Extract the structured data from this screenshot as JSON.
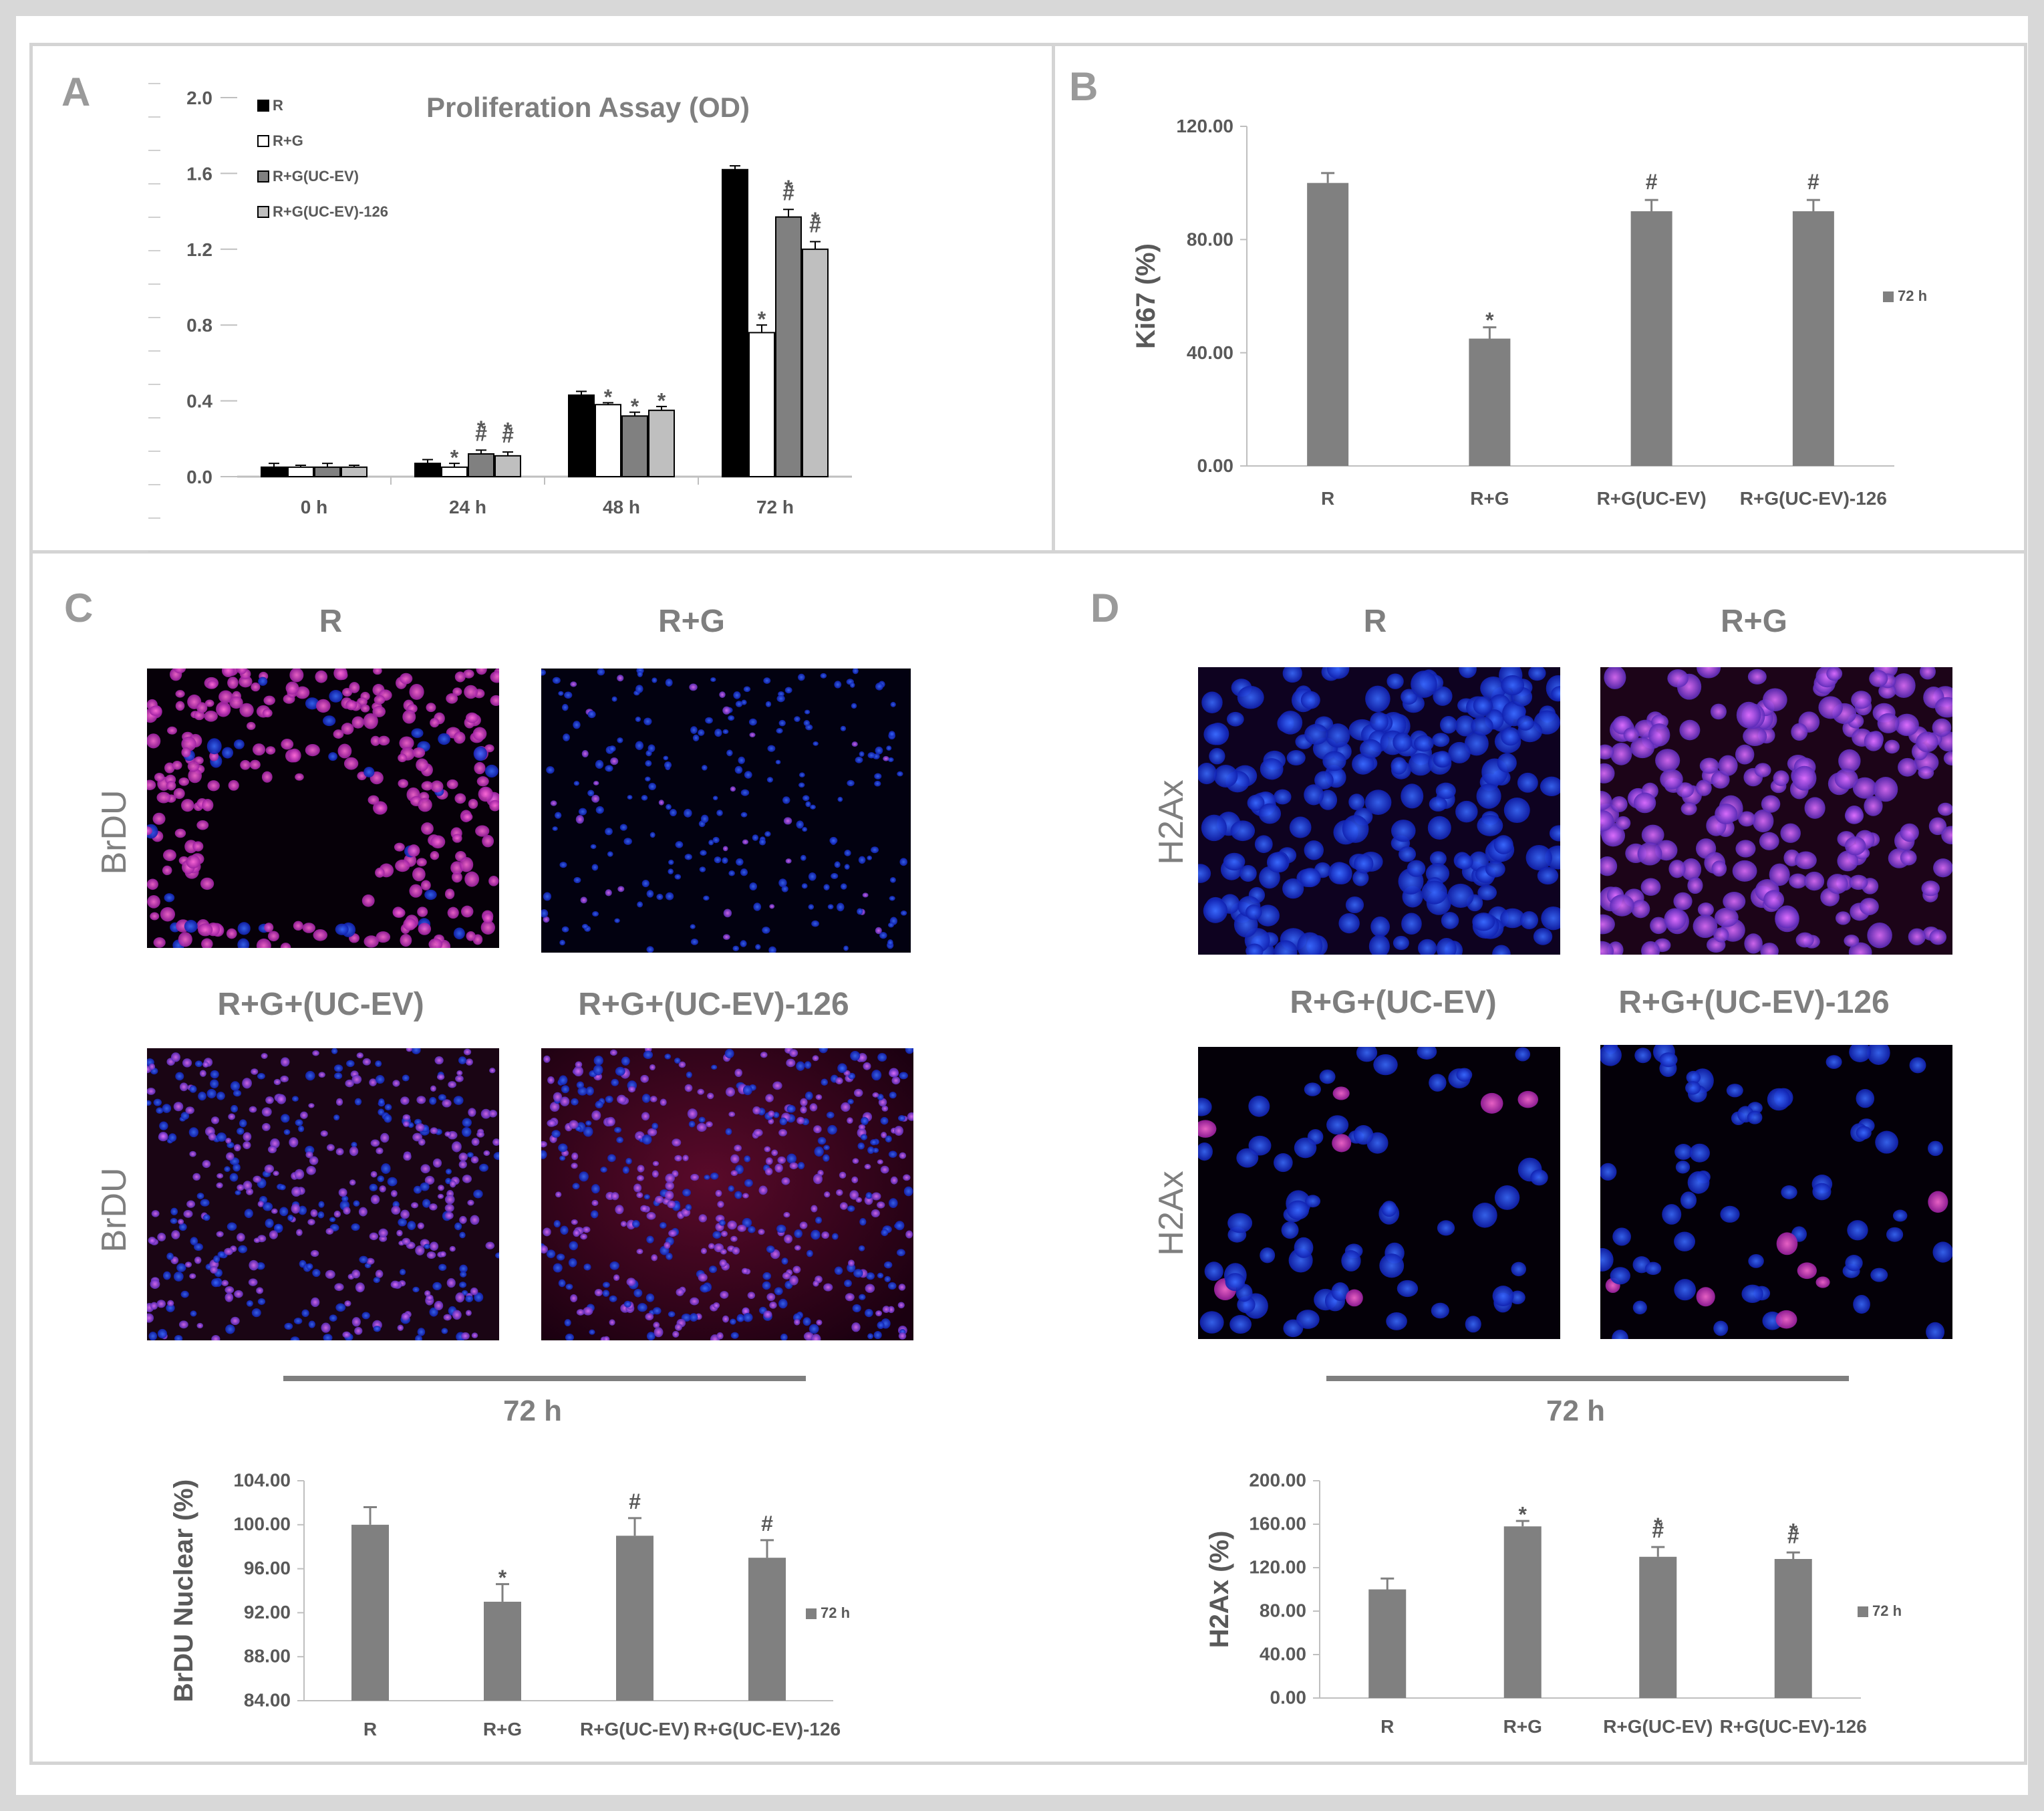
{
  "panels": {
    "A": "A",
    "B": "B",
    "C": "C",
    "D": "D"
  },
  "chart_data": [
    {
      "id": "A",
      "type": "bar",
      "title": "Proliferation Assay (OD)",
      "categories": [
        "0 h",
        "24 h",
        "48 h",
        "72 h"
      ],
      "ylim": [
        0,
        2.0
      ],
      "yticks": [
        "0.0",
        "0.4",
        "0.8",
        "1.2",
        "1.6",
        "2.0"
      ],
      "series": [
        {
          "name": "R",
          "color": "#000000",
          "values": [
            0.05,
            0.07,
            0.43,
            1.62
          ],
          "err": [
            0.02,
            0.02,
            0.02,
            0.02
          ],
          "sig": [
            "",
            "",
            "",
            ""
          ]
        },
        {
          "name": "R+G",
          "color": "#ffffff",
          "values": [
            0.05,
            0.05,
            0.38,
            0.76
          ],
          "err": [
            0.01,
            0.02,
            0.01,
            0.04
          ],
          "sig": [
            "",
            "*",
            "*",
            "*"
          ]
        },
        {
          "name": "R+G(UC-EV)",
          "color": "#808080",
          "values": [
            0.05,
            0.12,
            0.32,
            1.37
          ],
          "err": [
            0.02,
            0.02,
            0.02,
            0.04
          ],
          "sig": [
            "",
            "*#",
            "*",
            "*#"
          ]
        },
        {
          "name": "R+G(UC-EV)-126",
          "color": "#bfbfbf",
          "values": [
            0.05,
            0.11,
            0.35,
            1.2
          ],
          "err": [
            0.01,
            0.02,
            0.02,
            0.04
          ],
          "sig": [
            "",
            "*#",
            "*",
            "*#"
          ]
        }
      ]
    },
    {
      "id": "B",
      "type": "bar",
      "ylabel": "Ki67 (%)",
      "categories": [
        "R",
        "R+G",
        "R+G(UC-EV)",
        "R+G(UC-EV)-126"
      ],
      "values": [
        100,
        45,
        90,
        90
      ],
      "err": [
        3.5,
        4,
        4,
        4
      ],
      "sig": [
        "",
        "*",
        "#",
        "#"
      ],
      "ylim": [
        0,
        120
      ],
      "yticks": [
        "0.00",
        "40.00",
        "80.00",
        "120.00"
      ],
      "legend": "72 h"
    },
    {
      "id": "C",
      "type": "bar",
      "ylabel": "BrDU Nuclear (%)",
      "categories": [
        "R",
        "R+G",
        "R+G(UC-EV)",
        "R+G(UC-EV)-126"
      ],
      "values": [
        100,
        93,
        99,
        97
      ],
      "err": [
        1.6,
        1.6,
        1.6,
        1.6
      ],
      "sig": [
        "",
        "*",
        "#",
        "#"
      ],
      "ylim": [
        84,
        104
      ],
      "yticks": [
        "84.00",
        "88.00",
        "92.00",
        "96.00",
        "100.00",
        "104.00"
      ],
      "legend": "72 h"
    },
    {
      "id": "D",
      "type": "bar",
      "ylabel": "H2Ax (%)",
      "categories": [
        "R",
        "R+G",
        "R+G(UC-EV)",
        "R+G(UC-EV)-126"
      ],
      "values": [
        100,
        158,
        130,
        128
      ],
      "err": [
        10,
        5,
        9,
        6
      ],
      "sig": [
        "",
        "*",
        "*#",
        "*#"
      ],
      "ylim": [
        0,
        200
      ],
      "yticks": [
        "0.00",
        "40.00",
        "80.00",
        "120.00",
        "160.00",
        "200.00"
      ],
      "legend": "72 h"
    }
  ],
  "micrographs": {
    "C": {
      "stain": "BrDU",
      "columns_top": [
        "R",
        "R+G"
      ],
      "columns_bottom": [
        "R+G+(UC-EV)",
        "R+G+(UC-EV)-126"
      ],
      "timepoint": "72 h"
    },
    "D": {
      "stain": "H2Ax",
      "columns_top": [
        "R",
        "R+G"
      ],
      "columns_bottom": [
        "R+G+(UC-EV)",
        "R+G+(UC-EV)-126"
      ],
      "timepoint": "72 h"
    }
  },
  "colors": {
    "bar": "#808080",
    "axis": "#bfbfbf",
    "text": "#595959",
    "label": "#9a9a9a"
  }
}
